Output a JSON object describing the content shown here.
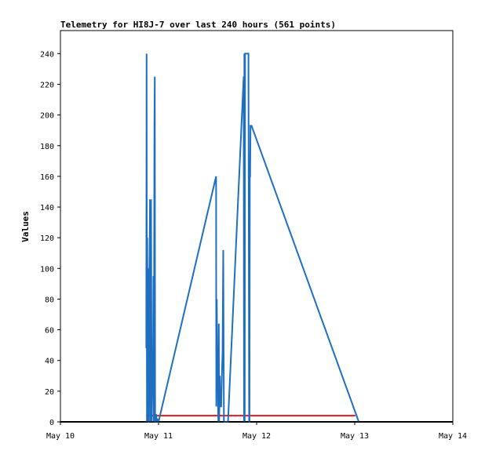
{
  "chart_data": {
    "type": "line",
    "title": "Telemetry for HI8J-7 over last 240 hours (561 points)",
    "ylabel": "Values",
    "xlabel": "",
    "x_ticks": [
      "May 10",
      "May 11",
      "May 12",
      "May 13",
      "May 14"
    ],
    "y_ticks": [
      0,
      20,
      40,
      60,
      80,
      100,
      120,
      140,
      160,
      180,
      200,
      220,
      240
    ],
    "xlim": [
      "May 10 00:00",
      "May 14 00:00"
    ],
    "ylim": [
      0,
      255
    ],
    "grid": false,
    "colors": {
      "series": "#1f6fc1",
      "threshold": "#e41a1c",
      "baseline": "#000000",
      "frame": "#000000"
    },
    "series": [
      {
        "x": [
          "May 10 21:00",
          "May 10 21:05",
          "May 10 21:10",
          "May 10 21:15",
          "May 10 21:20",
          "May 10 21:25",
          "May 10 21:30",
          "May 10 21:35",
          "May 10 21:40",
          "May 10 21:45",
          "May 10 21:55",
          "May 10 22:00",
          "May 10 22:10",
          "May 10 22:20",
          "May 10 22:30",
          "May 10 22:40",
          "May 10 22:45",
          "May 10 22:50",
          "May 10 23:00",
          "May 10 23:05",
          "May 10 23:10",
          "May 10 23:15",
          "May 10 23:20",
          "May 10 23:25",
          "May 10 23:30",
          "May 10 23:35",
          "May 10 23:40",
          "May 10 23:45",
          "May 10 23:50",
          "May 11 00:00",
          "May 11 14:05",
          "May 11 14:08",
          "May 11 14:15",
          "May 11 14:20",
          "May 11 14:30",
          "May 11 14:35",
          "May 11 14:40",
          "May 11 14:45",
          "May 11 14:50",
          "May 11 15:00",
          "May 11 15:05",
          "May 11 15:10",
          "May 11 15:20",
          "May 11 15:30",
          "May 11 15:40",
          "May 11 15:50",
          "May 11 16:00",
          "May 11 16:45",
          "May 11 16:50",
          "May 11 16:55",
          "May 11 17:00",
          "May 11 20:50",
          "May 11 20:55",
          "May 11 21:00",
          "May 11 21:05",
          "May 11 21:10",
          "May 11 21:20",
          "May 11 21:30",
          "May 11 21:40",
          "May 11 21:50",
          "May 11 22:00",
          "May 11 22:10",
          "May 11 22:15",
          "May 11 22:20",
          "May 11 22:25",
          "May 11 22:30",
          "May 11 22:40",
          "May 11 22:45",
          "May 13 01:00"
        ],
        "y": [
          48,
          240,
          0,
          120,
          0,
          100,
          0,
          0,
          40,
          90,
          145,
          0,
          145,
          0,
          30,
          45,
          95,
          0,
          193,
          225,
          0,
          0,
          0,
          5,
          2,
          2,
          0,
          2,
          0,
          0,
          160,
          10,
          80,
          50,
          30,
          5,
          0,
          64,
          0,
          30,
          15,
          10,
          10,
          30,
          45,
          112,
          0,
          0,
          0,
          0,
          0,
          225,
          0,
          240,
          0,
          240,
          240,
          240,
          240,
          240,
          240,
          0,
          0,
          160,
          160,
          193,
          193,
          193,
          0
        ]
      },
      {
        "name": "",
        "x": [
          "May 10 21:00",
          "May 13 00:10"
        ],
        "y": [
          4,
          4
        ]
      }
    ]
  }
}
